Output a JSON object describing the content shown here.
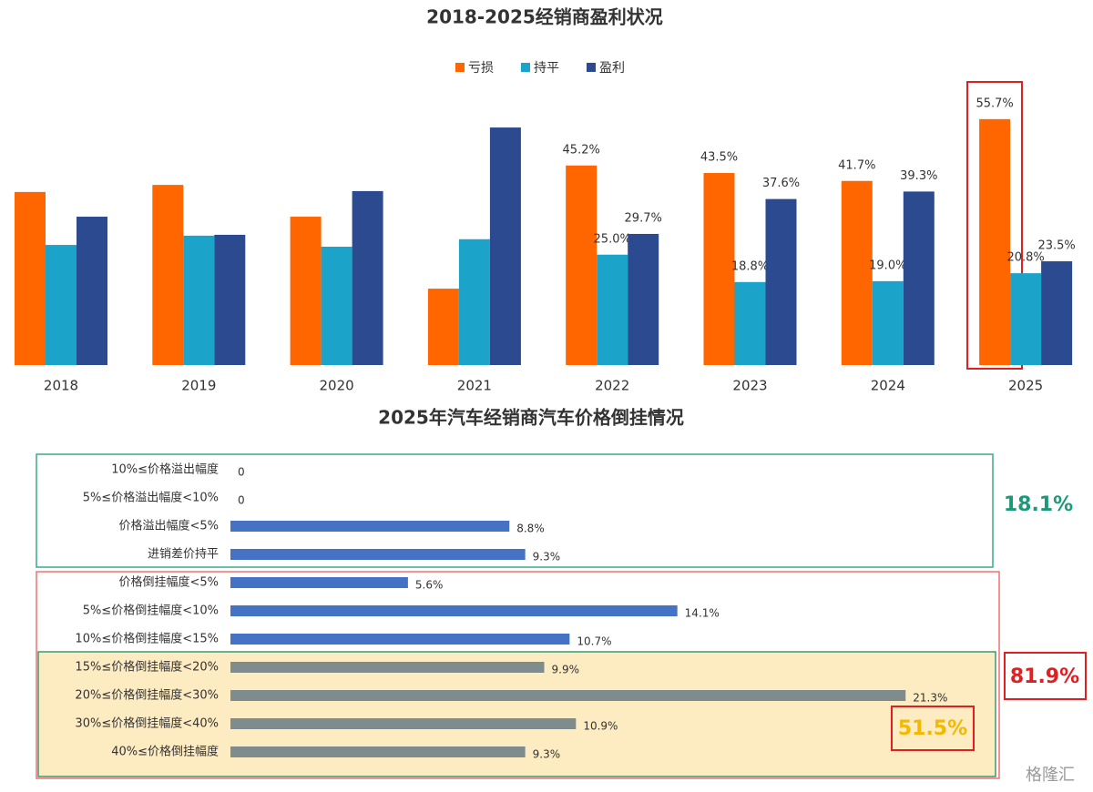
{
  "chart_data": [
    {
      "type": "bar",
      "title": "2018-2025经销商盈利状况",
      "categories": [
        "2018",
        "2019",
        "2020",
        "2021",
        "2022",
        "2023",
        "2024",
        "2025"
      ],
      "series": [
        {
          "name": "亏损",
          "color": "#ff6600",
          "values": [
            39.2,
            40.8,
            33.6,
            17.3,
            45.2,
            43.5,
            41.7,
            55.7
          ],
          "value_labels": [
            null,
            null,
            null,
            null,
            "45.2%",
            "43.5%",
            "41.7%",
            "55.7%"
          ]
        },
        {
          "name": "持平",
          "color": "#1ba3c9",
          "values": [
            27.2,
            29.3,
            26.8,
            28.5,
            25.0,
            18.8,
            19.0,
            20.8
          ],
          "value_labels": [
            null,
            null,
            null,
            null,
            "25.0%",
            "18.8%",
            "19.0%",
            "20.8%"
          ]
        },
        {
          "name": "盈利",
          "color": "#2b4a8f",
          "values": [
            33.6,
            29.5,
            39.4,
            53.8,
            29.7,
            37.6,
            39.3,
            23.5
          ],
          "value_labels": [
            null,
            null,
            null,
            null,
            "29.7%",
            "37.6%",
            "39.3%",
            "23.5%"
          ]
        }
      ]
    },
    {
      "type": "hbar",
      "title": "2025年汽车经销商汽车价格倒挂情况",
      "categories": [
        "10%≤价格溢出幅度",
        "5%≤价格溢出幅度<10%",
        "价格溢出幅度<5%",
        "进销差价持平",
        "价格倒挂幅度<5%",
        "5%≤价格倒挂幅度<10%",
        "10%≤价格倒挂幅度<15%",
        "15%≤价格倒挂幅度<20%",
        "20%≤价格倒挂幅度<30%",
        "30%≤价格倒挂幅度<40%",
        "40%≤价格倒挂幅度"
      ],
      "values": [
        0,
        0,
        8.8,
        9.3,
        5.6,
        14.1,
        10.7,
        9.9,
        21.3,
        10.9,
        9.3
      ],
      "value_labels": [
        null,
        null,
        "8.8%",
        "9.3%",
        "5.6%",
        "14.1%",
        "10.7%",
        "9.9%",
        "21.3%",
        "10.9%",
        "9.3%"
      ],
      "colors": [
        "#4472c4",
        "#4472c4",
        "#4472c4",
        "#4472c4",
        "#4472c4",
        "#4472c4",
        "#4472c4",
        "#7f8c8d",
        "#7f8c8d",
        "#7f8c8d",
        "#7f8c8d"
      ],
      "annotations": [
        {
          "text": "18.1%",
          "color": "#1a9a7a"
        },
        {
          "text": "81.9%",
          "color": "#e02020"
        },
        {
          "text": "51.5%",
          "color": "#f5b800"
        }
      ]
    }
  ],
  "watermark": "格隆汇"
}
